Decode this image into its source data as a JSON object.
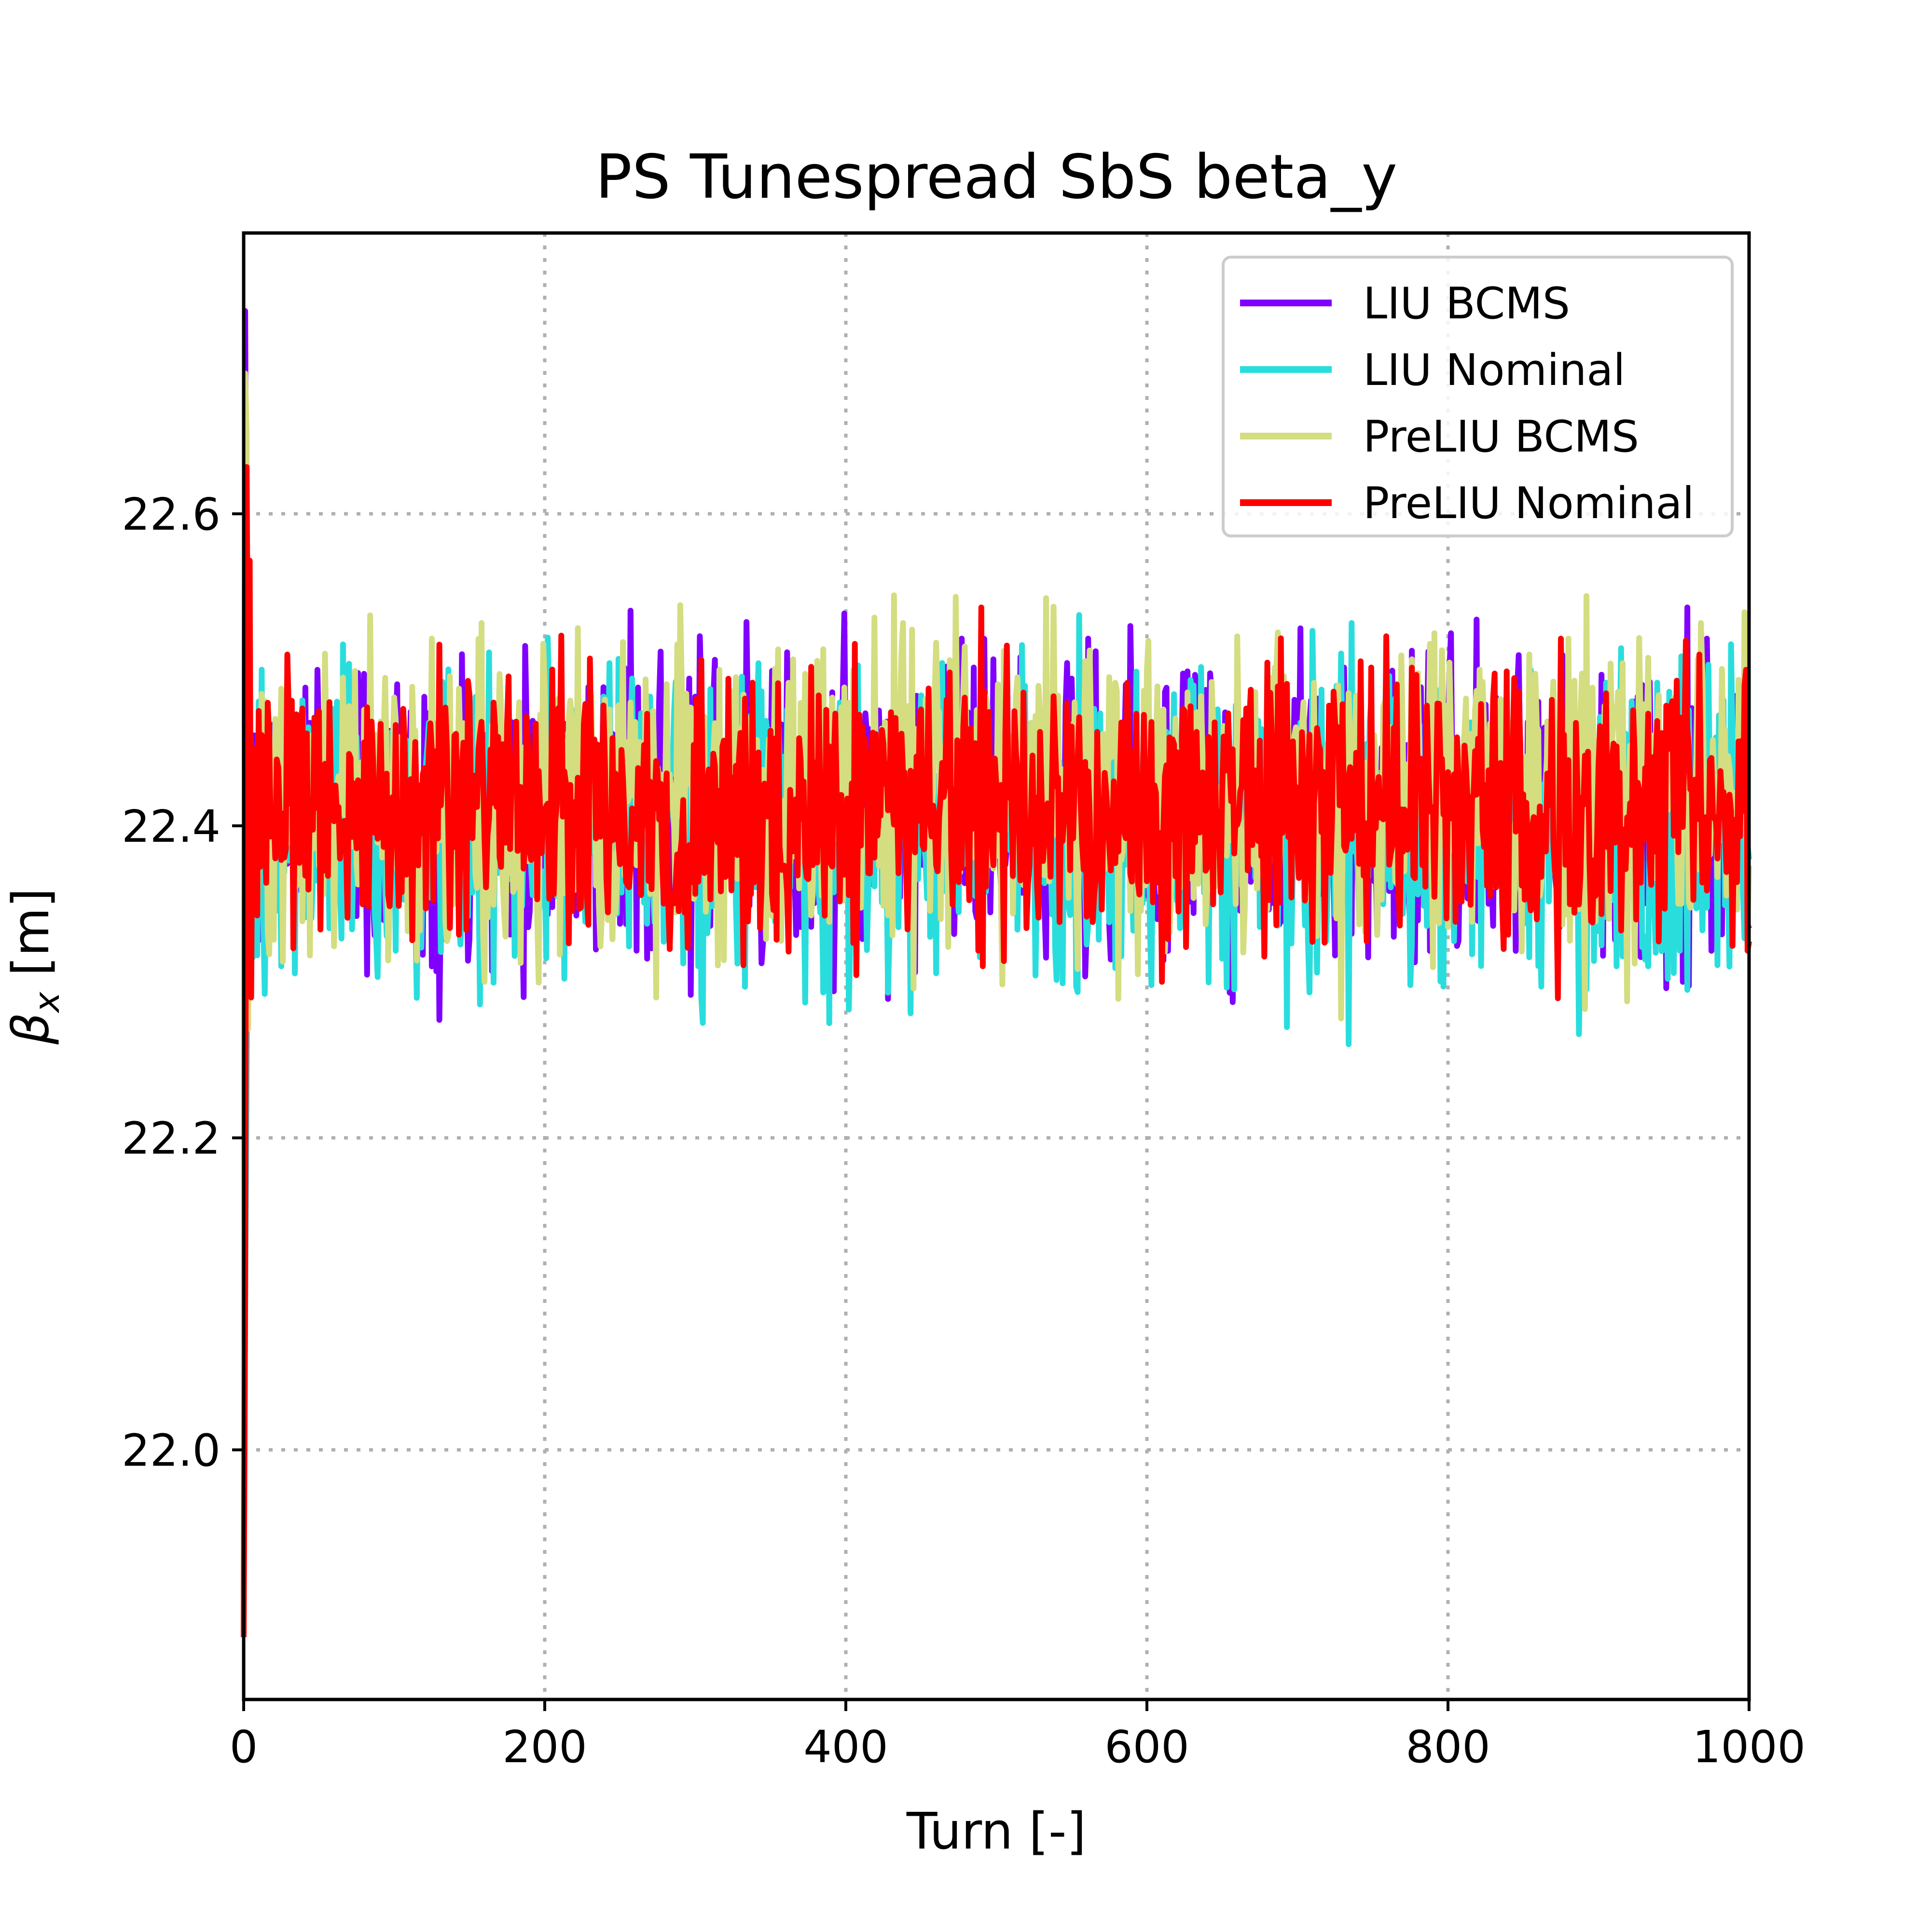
{
  "chart_data": {
    "type": "line",
    "title": "PS Tunespread SbS beta_y",
    "xlabel": "Turn [-]",
    "ylabel_symbol": "β",
    "ylabel_subscript": "x",
    "ylabel_unit": " [m]",
    "xlim": [
      0,
      1000
    ],
    "ylim": [
      21.84,
      22.78
    ],
    "xticks": [
      0,
      200,
      400,
      600,
      800,
      1000
    ],
    "xtick_labels": [
      "0",
      "200",
      "400",
      "600",
      "800",
      "1000"
    ],
    "yticks": [
      22.0,
      22.2,
      22.4,
      22.6
    ],
    "ytick_labels": [
      "22.0",
      "22.2",
      "22.4",
      "22.6"
    ],
    "grid": true,
    "legend_position": "top-right",
    "series": [
      {
        "name": "LIU BCMS",
        "color": "#8000ff",
        "initial": [
          [
            0,
            21.88
          ],
          [
            1,
            22.73
          ],
          [
            2,
            22.52
          ],
          [
            3,
            22.46
          ],
          [
            4,
            22.38
          ],
          [
            5,
            22.41
          ]
        ],
        "mean": 22.412,
        "amplitude": 0.048,
        "spikes": [
          [
            49,
            22.5
          ],
          [
            145,
            22.51
          ],
          [
            367,
            22.33
          ],
          [
            477,
            22.52
          ],
          [
            561,
            22.52
          ],
          [
            827,
            22.35
          ],
          [
            959,
            22.54
          ],
          [
            956,
            22.3
          ],
          [
            972,
            22.52
          ]
        ]
      },
      {
        "name": "LIU Nominal",
        "color": "#2adddd",
        "initial": [
          [
            0,
            21.88
          ],
          [
            1,
            22.09
          ],
          [
            2,
            22.24
          ],
          [
            3,
            22.36
          ],
          [
            4,
            22.37
          ],
          [
            5,
            22.39
          ]
        ],
        "mean": 22.398,
        "amplitude": 0.05,
        "spikes": [
          [
            25,
            22.31
          ],
          [
            302,
            22.31
          ],
          [
            734,
            22.26
          ],
          [
            736,
            22.53
          ],
          [
            912,
            22.31
          ]
        ]
      },
      {
        "name": "PreLIU BCMS",
        "color": "#d4dd80",
        "initial": [
          [
            0,
            21.88
          ],
          [
            1,
            22.69
          ],
          [
            2,
            22.65
          ],
          [
            3,
            22.27
          ],
          [
            4,
            22.48
          ],
          [
            5,
            22.42
          ]
        ],
        "mean": 22.42,
        "amplitude": 0.05,
        "spikes": [
          [
            125,
            22.52
          ],
          [
            158,
            22.53
          ],
          [
            160,
            22.3
          ],
          [
            316,
            22.5
          ],
          [
            438,
            22.53
          ],
          [
            880,
            22.52
          ],
          [
            968,
            22.53
          ]
        ]
      },
      {
        "name": "PreLIU Nominal",
        "color": "#ff0000",
        "initial": [
          [
            0,
            21.88
          ],
          [
            1,
            22.1
          ],
          [
            2,
            22.63
          ],
          [
            3,
            22.45
          ],
          [
            4,
            22.57
          ],
          [
            5,
            22.29
          ],
          [
            6,
            22.45
          ]
        ],
        "mean": 22.41,
        "amplitude": 0.042,
        "spikes": [
          [
            490,
            22.54
          ],
          [
            491,
            22.31
          ],
          [
            488,
            22.32
          ],
          [
            610,
            22.3
          ],
          [
            875,
            22.52
          ],
          [
            998,
            22.5
          ],
          [
            999,
            22.32
          ]
        ]
      }
    ]
  }
}
